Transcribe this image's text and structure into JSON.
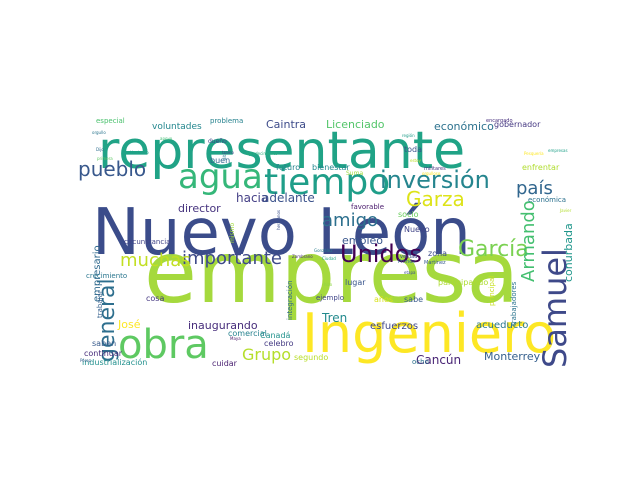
{
  "wordcloud": {
    "words": [
      {
        "text": "empresa",
        "color": "#a5d93d"
      },
      {
        "text": "Nuevo León",
        "color": "#3b4c8a"
      },
      {
        "text": "representante",
        "color": "#20a386"
      },
      {
        "text": "Ingeniero",
        "color": "#fde725"
      },
      {
        "text": "obra",
        "color": "#5ec962"
      },
      {
        "text": "agua",
        "color": "#35b779"
      },
      {
        "text": "tiempo",
        "color": "#1f9e89"
      },
      {
        "text": "Samuel",
        "color": "#3e4989"
      },
      {
        "text": "inversión",
        "color": "#25858e"
      },
      {
        "text": "Unidos",
        "color": "#440154"
      },
      {
        "text": "pueblo",
        "color": "#38588c"
      },
      {
        "text": "García",
        "color": "#7ad151"
      },
      {
        "text": "general",
        "color": "#2e6f8e"
      },
      {
        "text": "Garza",
        "color": "#dde318"
      },
      {
        "text": "país",
        "color": "#31668e"
      },
      {
        "text": "importante",
        "color": "#3e4a89"
      },
      {
        "text": "muchas",
        "color": "#c2df23"
      },
      {
        "text": "amigo",
        "color": "#2d708e"
      },
      {
        "text": "Grupo",
        "color": "#b5de2b"
      },
      {
        "text": "Armando",
        "color": "#44bf70"
      },
      {
        "text": "hacia",
        "color": "#433e85"
      },
      {
        "text": "adelante",
        "color": "#3b528b"
      },
      {
        "text": "económico",
        "color": "#2c728e"
      },
      {
        "text": "director",
        "color": "#46337e"
      },
      {
        "text": "empleo",
        "color": "#39568c"
      },
      {
        "text": "conurbada",
        "color": "#1f968b"
      },
      {
        "text": "Caintra",
        "color": "#3e4c8a"
      },
      {
        "text": "Licenciado",
        "color": "#52c569"
      },
      {
        "text": "voluntades",
        "color": "#24878e"
      },
      {
        "text": "especial",
        "color": "#4ac16d"
      },
      {
        "text": "problema",
        "color": "#26828e"
      },
      {
        "text": "inaugurando",
        "color": "#472d7b"
      },
      {
        "text": "José",
        "color": "#fde725"
      },
      {
        "text": "Tren",
        "color": "#238a8d"
      },
      {
        "text": "Cancún",
        "color": "#482475"
      },
      {
        "text": "Monterrey",
        "color": "#355f8d"
      },
      {
        "text": "acueducto",
        "color": "#2a788e"
      },
      {
        "text": "esfuerzos",
        "color": "#3f4788"
      },
      {
        "text": "empresario",
        "color": "#306a8e"
      },
      {
        "text": "circunstancia",
        "color": "#404387"
      },
      {
        "text": "crecimiento",
        "color": "#2a768e"
      },
      {
        "text": "trabajar",
        "color": "#34608d"
      },
      {
        "text": "saben",
        "color": "#375a8c"
      },
      {
        "text": "continuar",
        "color": "#472c7a"
      },
      {
        "text": "industrialización",
        "color": "#21908d"
      },
      {
        "text": "cuidar",
        "color": "#481f70"
      },
      {
        "text": "segundo",
        "color": "#b8de29"
      },
      {
        "text": "celebro",
        "color": "#443a83"
      },
      {
        "text": "comercial",
        "color": "#26818e"
      },
      {
        "text": "Canadá",
        "color": "#20928c"
      },
      {
        "text": "integración",
        "color": "#31678e"
      },
      {
        "text": "ejemplo",
        "color": "#404588"
      },
      {
        "text": "años",
        "color": "#d8e219"
      },
      {
        "text": "sabe",
        "color": "#38598c"
      },
      {
        "text": "participando",
        "color": "#addc30"
      },
      {
        "text": "principal",
        "color": "#c8e020"
      },
      {
        "text": "trabajadores",
        "color": "#2b748e"
      },
      {
        "text": "ocho",
        "color": "#2d718e"
      },
      {
        "text": "cosa",
        "color": "#453781"
      },
      {
        "text": "lugar",
        "color": "#39558c"
      },
      {
        "text": "zona",
        "color": "#3d4e8a"
      },
      {
        "text": "Nuevo",
        "color": "#414487"
      },
      {
        "text": "socio",
        "color": "#69cd5b"
      },
      {
        "text": "favorable",
        "color": "#48196b"
      },
      {
        "text": "futuro",
        "color": "#25848e"
      },
      {
        "text": "bienestar",
        "color": "#23888e"
      },
      {
        "text": "Suma",
        "color": "#9bd93c"
      },
      {
        "text": "toda",
        "color": "#3a538b"
      },
      {
        "text": "buen",
        "color": "#32658e"
      },
      {
        "text": "gobernador",
        "color": "#453882"
      },
      {
        "text": "enfrentar",
        "color": "#b0dd2f"
      },
      {
        "text": "económica",
        "color": "#2c718e"
      },
      {
        "text": "encargado",
        "color": "#472f7d"
      },
      {
        "text": "militares",
        "color": "#463480"
      },
      {
        "text": "mismo",
        "color": "#a0da39"
      },
      {
        "text": "verdad",
        "color": "#3c4f8a"
      },
      {
        "text": "Martínez",
        "color": "#375b8d"
      },
      {
        "text": "Primos",
        "color": "#2f6c8e"
      },
      {
        "text": "Zambrano",
        "color": "#482878"
      },
      {
        "text": "Ciudad",
        "color": "#22a785"
      },
      {
        "text": "González",
        "color": "#287d8e"
      },
      {
        "text": "etapa",
        "color": "#3c508b"
      },
      {
        "text": "Maya",
        "color": "#471365"
      },
      {
        "text": "Pérez",
        "color": "#365d8d"
      },
      {
        "text": "hermanos",
        "color": "#3b518b"
      },
      {
        "text": "hizo",
        "color": "#8ed645"
      },
      {
        "text": "alta",
        "color": "#2a788e"
      },
      {
        "text": "Javier",
        "color": "#b2dd2d"
      },
      {
        "text": "Pesquería",
        "color": "#fde725"
      },
      {
        "text": "orgullo",
        "color": "#2b758e"
      },
      {
        "text": "primera",
        "color": "#5cc863"
      },
      {
        "text": "Haciendo",
        "color": "#1fa187"
      },
      {
        "text": "tramo",
        "color": "#414287"
      },
      {
        "text": "agradecimiento",
        "color": "#29af7f"
      },
      {
        "text": "dueño",
        "color": "#3f4889"
      },
      {
        "text": "Dijo",
        "color": "#2e6e8e"
      },
      {
        "text": "estoy",
        "color": "#bddf26"
      },
      {
        "text": "orgulloso",
        "color": "#fde725"
      },
      {
        "text": "región",
        "color": "#1e9c89"
      },
      {
        "text": "empresas",
        "color": "#1fa088"
      },
      {
        "text": "apoyo",
        "color": "#40bd72"
      }
    ]
  }
}
